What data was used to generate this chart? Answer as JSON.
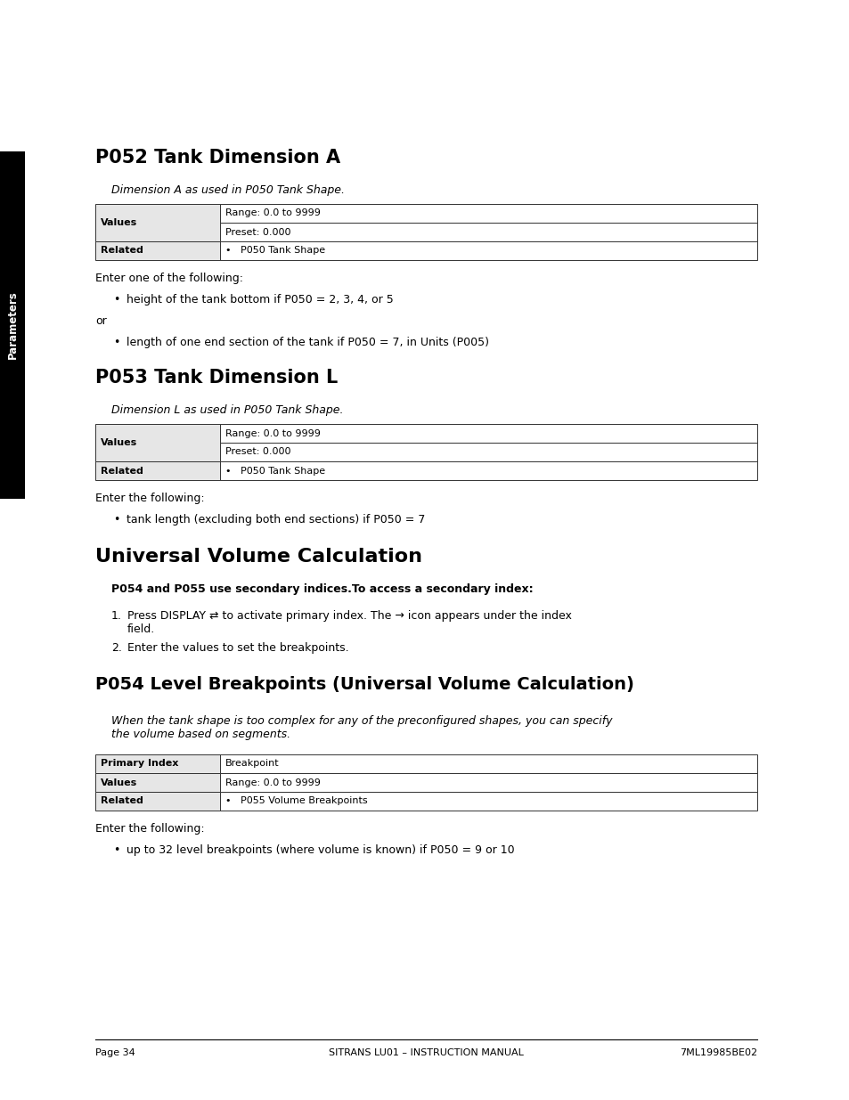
{
  "page_bg": "#ffffff",
  "sidebar_color": "#000000",
  "sidebar_text": "Parameters",
  "section1_title": "P052 Tank Dimension A",
  "section1_subtitle": "Dimension A as used in P050 Tank Shape.",
  "section2_title": "P053 Tank Dimension L",
  "section2_subtitle": "Dimension L as used in P050 Tank Shape.",
  "section3_title": "Universal Volume Calculation",
  "section3_note": "P054 and P055 use secondary indices.To access a secondary index:",
  "section4_title": "P054 Level Breakpoints (Universal Volume Calculation)",
  "section4_subtitle": "When the tank shape is too complex for any of the preconfigured shapes, you can specify\nthe volume based on segments.",
  "footer_left": "Page 34",
  "footer_center": "SITRANS LU01 – INSTRUCTION MANUAL",
  "footer_right": "7ML19985BE02"
}
